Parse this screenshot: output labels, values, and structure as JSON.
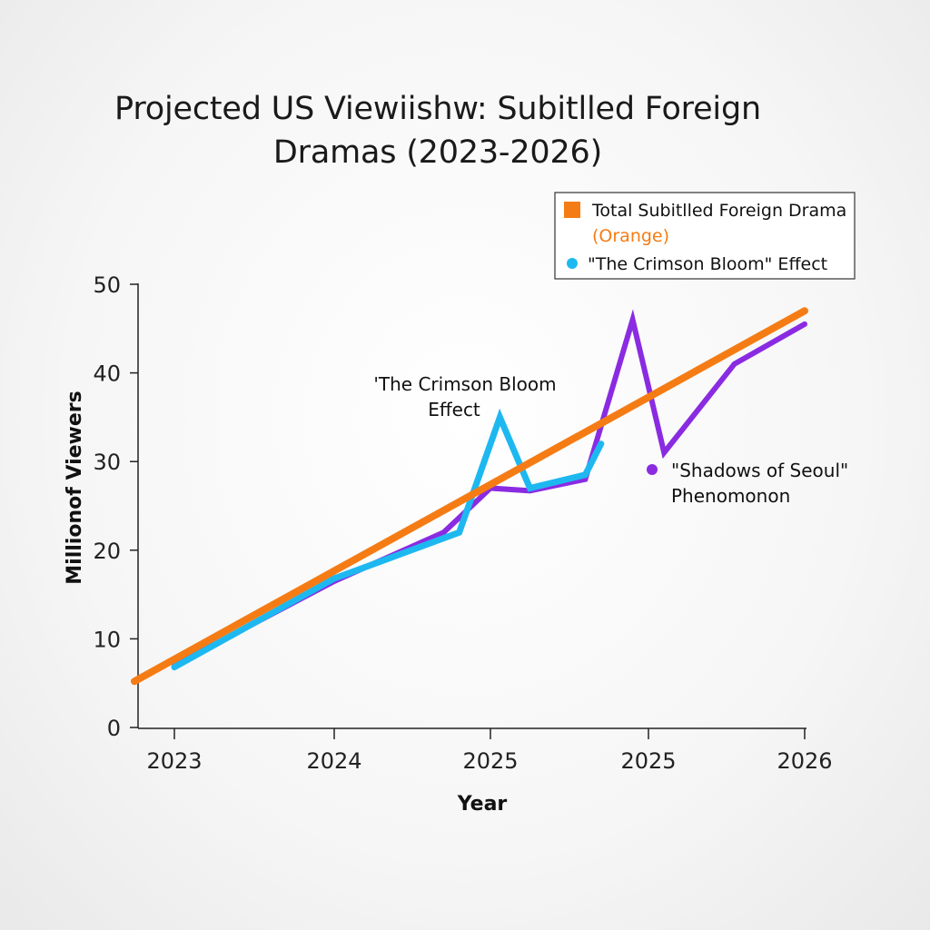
{
  "chart_data": {
    "type": "line",
    "title": [
      "Projected US Viewiishw: Subitlled Foreign",
      "Dramas (2023-2026)"
    ],
    "xlabel": "Year",
    "ylabel": "Millionof Viewers",
    "ylim": [
      0,
      50
    ],
    "yticks": [
      "0",
      "10",
      "20",
      "30",
      "40",
      "50"
    ],
    "xticks": [
      "2023",
      "2024",
      "2025",
      "2025",
      "2026"
    ],
    "grid": false,
    "legend_position": "top-right",
    "series": [
      {
        "name": "Total Subitlled Foreign Drama",
        "name_suffix": "(Orange)",
        "color": "#f57c14",
        "points": [
          [
            -0.25,
            5.2
          ],
          [
            4.0,
            47.0
          ]
        ]
      },
      {
        "name": "\"The Crimson Bloom\" Effect",
        "color": "#1eb8f0",
        "points": [
          [
            0.0,
            6.8
          ],
          [
            1.0,
            16.8
          ],
          [
            1.8,
            22.0
          ],
          [
            2.06,
            35.0
          ],
          [
            2.25,
            27.0
          ],
          [
            2.6,
            28.5
          ],
          [
            2.7,
            32.0
          ]
        ]
      },
      {
        "color": "#8a2be2",
        "points": [
          [
            0.0,
            7.0
          ],
          [
            1.0,
            16.5
          ],
          [
            1.7,
            22.0
          ],
          [
            2.0,
            27.0
          ],
          [
            2.25,
            26.7
          ],
          [
            2.6,
            28.0
          ],
          [
            2.9,
            46.0
          ],
          [
            3.1,
            31.0
          ],
          [
            3.55,
            41.0
          ],
          [
            4.0,
            45.5
          ]
        ]
      }
    ],
    "annotations": [
      {
        "lines": [
          "'The Crimson Bloom",
          "Effect"
        ]
      },
      {
        "lines": [
          "\"Shadows of Seoul\"",
          "Phenomonon"
        ],
        "color": "#8a2be2"
      }
    ]
  }
}
